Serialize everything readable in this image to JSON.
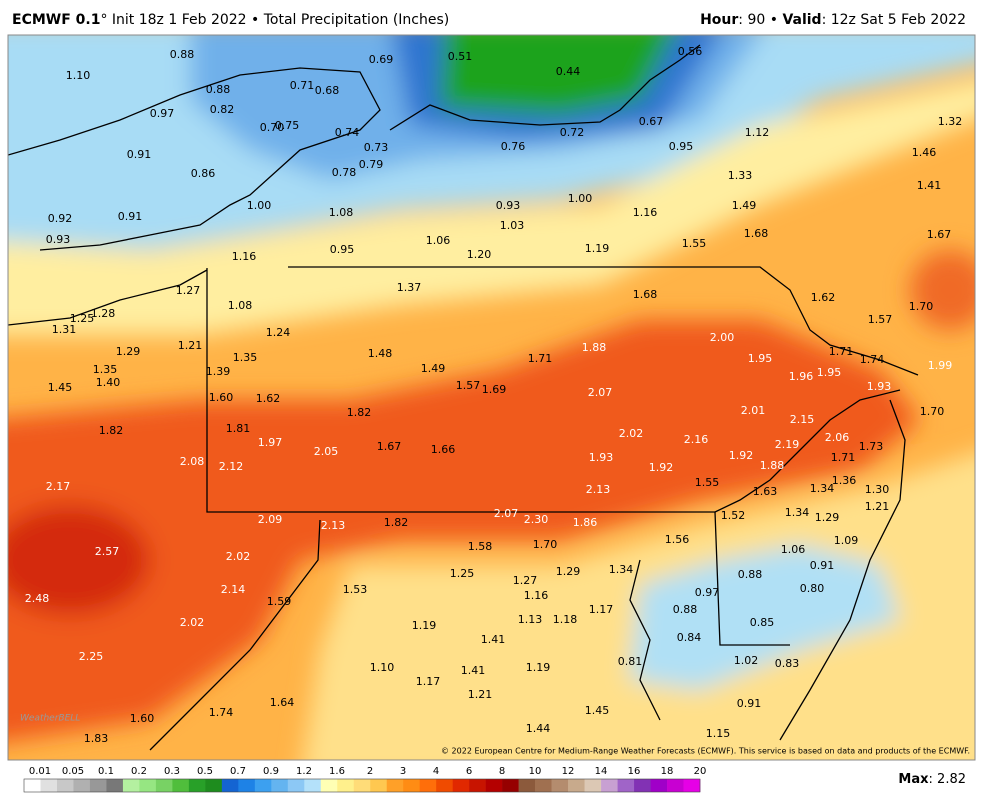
{
  "header": {
    "model": "ECMWF 0.1",
    "run": "° Init 18z 1 Feb 2022 • Total Precipitation (Inches)",
    "hour_label": "Hour",
    "hour": ": 90 • ",
    "valid_label": "Valid",
    "valid": ": 12z Sat 5 Feb 2022"
  },
  "map": {
    "labels": [
      "0.88",
      "1.10",
      "0.69",
      "0.51",
      "0.56",
      "0.44",
      "0.88",
      "0.71",
      "0.68",
      "0.97",
      "0.82",
      "0.70",
      "0.75",
      "0.74",
      "0.72",
      "0.67",
      "1.12",
      "1.32",
      "0.91",
      "0.73",
      "0.76",
      "0.95",
      "1.46",
      "0.86",
      "0.79",
      "0.78",
      "1.33",
      "1.41",
      "1.00",
      "1.08",
      "0.93",
      "1.00",
      "1.16",
      "1.49",
      "0.92",
      "0.91",
      "1.03",
      "1.68",
      "1.67",
      "0.93",
      "1.06",
      "1.55",
      "0.95",
      "1.20",
      "1.19",
      "1.16",
      "1.37",
      "1.27",
      "1.68",
      "1.62",
      "1.08",
      "1.70",
      "1.25",
      "1.28",
      "1.57",
      "1.31",
      "1.24",
      "1.21",
      "1.29",
      "1.35",
      "1.48",
      "1.88",
      "2.00",
      "1.71",
      "1.74",
      "1.71",
      "1.95",
      "1.99",
      "1.49",
      "1.35",
      "1.39",
      "1.40",
      "1.96",
      "1.95",
      "1.57",
      "1.69",
      "1.45",
      "1.93",
      "2.07",
      "1.60",
      "1.62",
      "1.82",
      "2.01",
      "1.70",
      "2.15",
      "1.82",
      "1.81",
      "2.02",
      "2.16",
      "2.06",
      "1.97",
      "1.67",
      "1.66",
      "2.05",
      "1.73",
      "2.19",
      "2.08",
      "1.93",
      "1.92",
      "1.71",
      "2.12",
      "1.92",
      "1.88",
      "1.36",
      "1.55",
      "1.34",
      "1.30",
      "2.17",
      "2.13",
      "1.63",
      "1.21",
      "1.34",
      "1.52",
      "1.29",
      "2.07",
      "2.09",
      "2.13",
      "1.82",
      "2.30",
      "1.86",
      "1.09",
      "1.58",
      "1.70",
      "1.56",
      "1.06",
      "2.57",
      "2.02",
      "1.25",
      "1.29",
      "1.34",
      "0.91",
      "0.88",
      "1.27",
      "2.14",
      "1.53",
      "0.97",
      "0.80",
      "1.16",
      "1.17",
      "1.59",
      "2.48",
      "0.88",
      "2.02",
      "1.13",
      "1.18",
      "1.19",
      "0.85",
      "1.41",
      "0.84",
      "2.25",
      "1.10",
      "0.81",
      "1.02",
      "0.83",
      "1.41",
      "1.19",
      "1.17",
      "1.21",
      "1.64",
      "0.91",
      "1.74",
      "1.45",
      "1.60",
      "1.44",
      "1.83",
      "1.15"
    ],
    "credit": "© 2022 European Centre for Medium-Range Weather Forecasts (ECMWF). This service is based on data and products of the ECMWF.",
    "watermark": "WeatherBELL"
  },
  "legend": {
    "levels": [
      "0.01",
      "0.05",
      "0.1",
      "0.2",
      "0.3",
      "0.5",
      "0.7",
      "0.9",
      "1.2",
      "1.6",
      "2",
      "3",
      "4",
      "6",
      "8",
      "10",
      "12",
      "14",
      "16",
      "18",
      "20"
    ],
    "colors": [
      "#ffffff",
      "#e0e0e0",
      "#c8c8c8",
      "#b0b0b0",
      "#989898",
      "#787878",
      "#b4f0a0",
      "#96e682",
      "#78d264",
      "#50be3c",
      "#28a028",
      "#1e8c1e",
      "#1464d2",
      "#1e82e6",
      "#3ca0f0",
      "#64b4f0",
      "#8cc8f5",
      "#b4e1fa",
      "#ffffb4",
      "#fff08c",
      "#ffdc78",
      "#ffc850",
      "#ffa028",
      "#ff8c14",
      "#ff6e0a",
      "#f04b00",
      "#e12800",
      "#c81400",
      "#b40000",
      "#960000",
      "#8c5a3c",
      "#a07050",
      "#b48c6e",
      "#c8aa8c",
      "#dcc8b4",
      "#c8a0d2",
      "#a064c8",
      "#8232b4",
      "#a000c8",
      "#c800d2",
      "#e600e6"
    ]
  },
  "footer": {
    "max_label": "Max",
    "max_value": ": 2.82"
  }
}
